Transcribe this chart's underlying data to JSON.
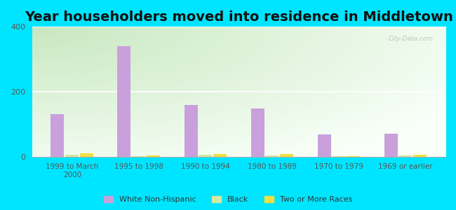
{
  "title": "Year householders moved into residence in Middletown",
  "categories": [
    "1999 to March\n2000",
    "1995 to 1998",
    "1990 to 1994",
    "1980 to 1989",
    "1970 to 1979",
    "1969 or earlier"
  ],
  "series": {
    "White Non-Hispanic": [
      130,
      340,
      160,
      148,
      68,
      70
    ],
    "Black": [
      5,
      2,
      5,
      4,
      2,
      4
    ],
    "Two or More Races": [
      10,
      4,
      8,
      9,
      2,
      6
    ]
  },
  "colors": {
    "White Non-Hispanic": "#c9a0dc",
    "Black": "#d4e8a0",
    "Two or More Races": "#f0e040"
  },
  "ylim": [
    0,
    400
  ],
  "yticks": [
    0,
    200,
    400
  ],
  "bg_green": "#c8e8c0",
  "bg_white": "#f8fff8",
  "outer_background": "#00e5ff",
  "title_fontsize": 14,
  "watermark": "City-Data.com"
}
